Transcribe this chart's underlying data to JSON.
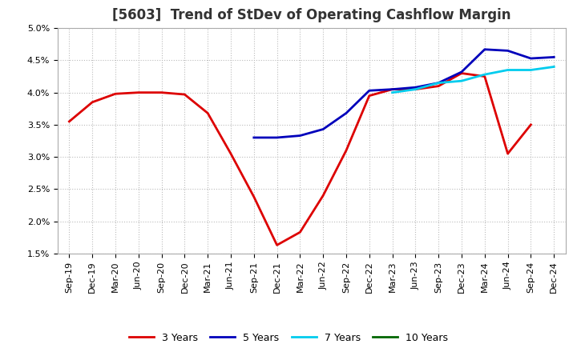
{
  "title": "[5603]  Trend of StDev of Operating Cashflow Margin",
  "xlabels": [
    "Sep-19",
    "Dec-19",
    "Mar-20",
    "Jun-20",
    "Sep-20",
    "Dec-20",
    "Mar-21",
    "Jun-21",
    "Sep-21",
    "Dec-21",
    "Mar-22",
    "Jun-22",
    "Sep-22",
    "Dec-22",
    "Mar-23",
    "Jun-23",
    "Sep-23",
    "Dec-23",
    "Mar-24",
    "Jun-24",
    "Sep-24",
    "Dec-24"
  ],
  "ylim": [
    0.015,
    0.05
  ],
  "yticks": [
    0.015,
    0.02,
    0.025,
    0.03,
    0.035,
    0.04,
    0.045,
    0.05
  ],
  "series": {
    "3 Years": {
      "color": "#DD0000",
      "linewidth": 2.0,
      "data_x": [
        0,
        1,
        2,
        3,
        4,
        5,
        6,
        7,
        8,
        9,
        10,
        11,
        12,
        13,
        14,
        15,
        16,
        17,
        18,
        19,
        20
      ],
      "data_y": [
        0.0355,
        0.0385,
        0.0398,
        0.04,
        0.04,
        0.0397,
        0.0368,
        0.0305,
        0.0238,
        0.0163,
        0.0183,
        0.024,
        0.031,
        0.0395,
        0.0405,
        0.0405,
        0.041,
        0.043,
        0.0425,
        0.0305,
        0.035
      ]
    },
    "5 Years": {
      "color": "#0000BB",
      "linewidth": 2.0,
      "data_x": [
        8,
        9,
        10,
        11,
        12,
        13,
        14,
        15,
        16,
        17,
        18,
        19,
        20,
        21
      ],
      "data_y": [
        0.033,
        0.033,
        0.0333,
        0.0343,
        0.0368,
        0.0403,
        0.0405,
        0.0408,
        0.0415,
        0.0432,
        0.0467,
        0.0465,
        0.0453,
        0.0455
      ]
    },
    "7 Years": {
      "color": "#00CCEE",
      "linewidth": 2.0,
      "data_x": [
        14,
        15,
        16,
        17,
        18,
        19,
        20,
        21
      ],
      "data_y": [
        0.04,
        0.0405,
        0.0415,
        0.0418,
        0.0428,
        0.0435,
        0.0435,
        0.044
      ]
    },
    "10 Years": {
      "color": "#006600",
      "linewidth": 2.0,
      "data_x": [],
      "data_y": []
    }
  },
  "legend_order": [
    "3 Years",
    "5 Years",
    "7 Years",
    "10 Years"
  ],
  "background_color": "#FFFFFF",
  "grid_color": "#BBBBBB",
  "title_fontsize": 12,
  "tick_fontsize": 8,
  "legend_fontsize": 9
}
